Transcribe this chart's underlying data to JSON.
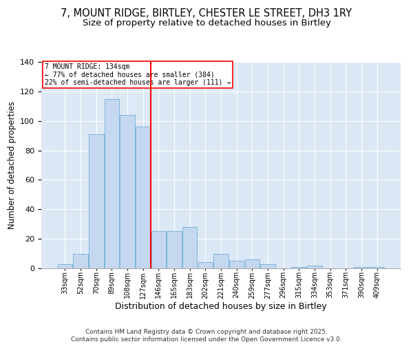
{
  "title": "7, MOUNT RIDGE, BIRTLEY, CHESTER LE STREET, DH3 1RY",
  "subtitle": "Size of property relative to detached houses in Birtley",
  "xlabel": "Distribution of detached houses by size in Birtley",
  "ylabel": "Number of detached properties",
  "bar_labels": [
    "33sqm",
    "52sqm",
    "70sqm",
    "89sqm",
    "108sqm",
    "127sqm",
    "146sqm",
    "165sqm",
    "183sqm",
    "202sqm",
    "221sqm",
    "240sqm",
    "259sqm",
    "277sqm",
    "296sqm",
    "315sqm",
    "334sqm",
    "353sqm",
    "371sqm",
    "390sqm",
    "409sqm"
  ],
  "bar_values": [
    3,
    10,
    91,
    115,
    104,
    96,
    25,
    25,
    28,
    4,
    10,
    5,
    6,
    3,
    0,
    1,
    2,
    0,
    0,
    1,
    1
  ],
  "bar_color": "#c5d8f0",
  "bar_edge_color": "#6baed6",
  "vline_x": 5.5,
  "vline_color": "red",
  "annotation_title": "7 MOUNT RIDGE: 134sqm",
  "annotation_line1": "← 77% of detached houses are smaller (384)",
  "annotation_line2": "22% of semi-detached houses are larger (111) →",
  "annotation_box_color": "red",
  "ylim": [
    0,
    140
  ],
  "yticks": [
    0,
    20,
    40,
    60,
    80,
    100,
    120,
    140
  ],
  "background_color": "#dce8f5",
  "footer": "Contains HM Land Registry data © Crown copyright and database right 2025.\nContains public sector information licensed under the Open Government Licence v3.0.",
  "title_fontsize": 10.5,
  "subtitle_fontsize": 9.5,
  "xlabel_fontsize": 9,
  "ylabel_fontsize": 8.5,
  "footer_fontsize": 6.5,
  "tick_fontsize": 7,
  "ytick_fontsize": 8,
  "annot_fontsize": 7
}
